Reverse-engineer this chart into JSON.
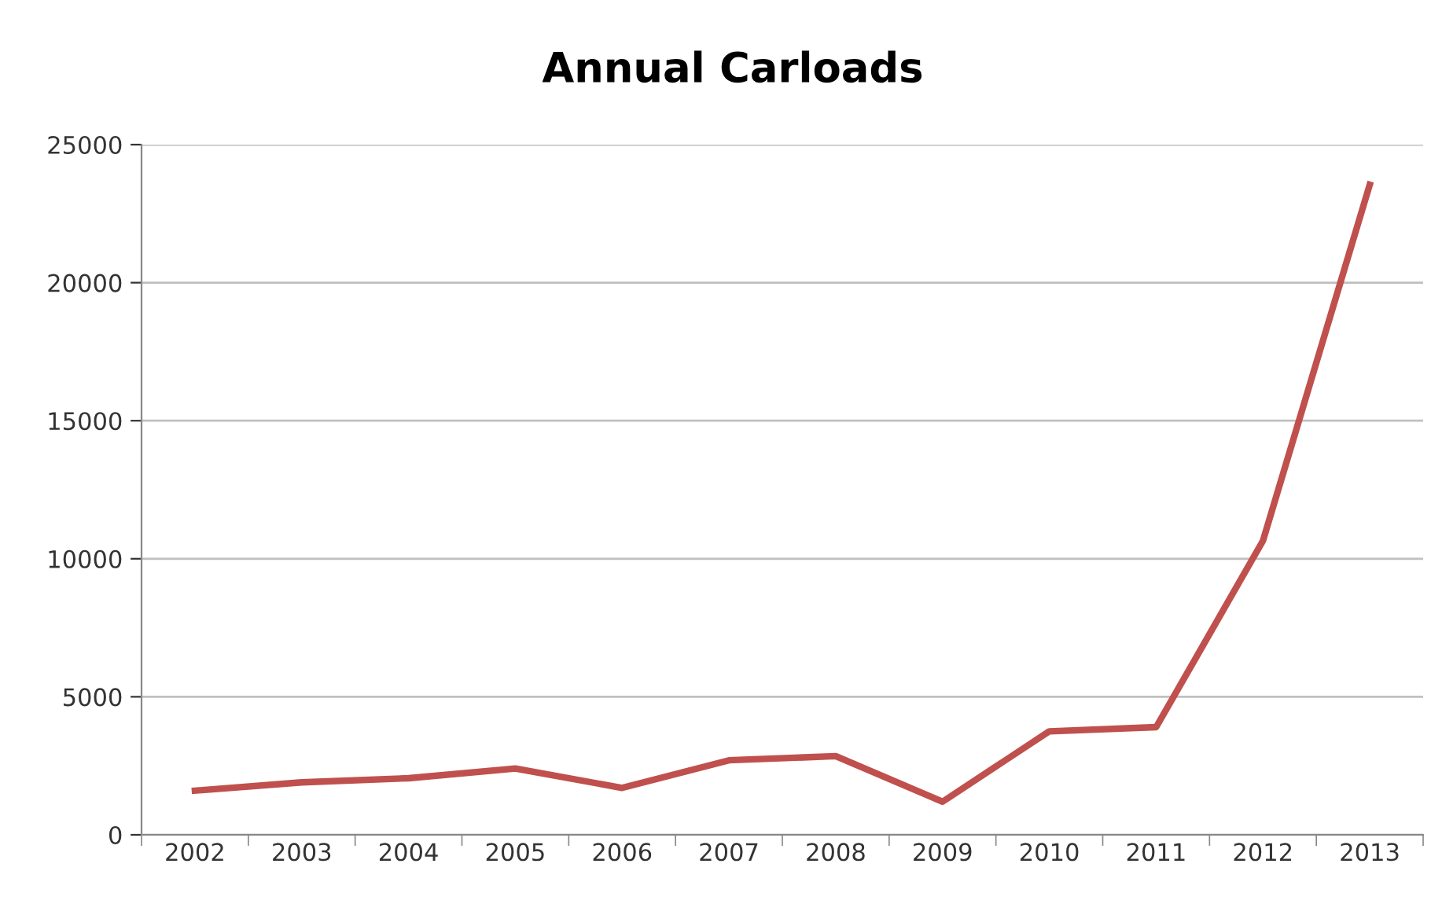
{
  "chart_data": {
    "type": "line",
    "title": "Annual Carloads",
    "categories": [
      "2002",
      "2003",
      "2004",
      "2005",
      "2006",
      "2007",
      "2008",
      "2009",
      "2010",
      "2011",
      "2012",
      "2013"
    ],
    "series": [
      {
        "color": "#c0504d",
        "values": [
          1600,
          1900,
          2050,
          2400,
          1700,
          2700,
          2850,
          1200,
          3750,
          3900,
          10650,
          23550
        ]
      }
    ],
    "ylim": [
      0,
      25000
    ],
    "yticks": [
      0,
      5000,
      10000,
      15000,
      20000,
      25000
    ],
    "grid": "y",
    "marker": "none",
    "line_style": "solid"
  }
}
